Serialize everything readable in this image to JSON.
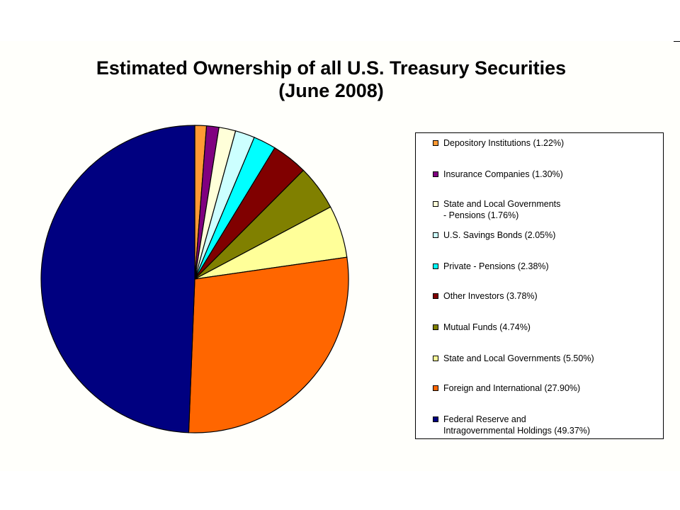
{
  "chart_data": {
    "type": "pie",
    "title": "Estimated Ownership of all U.S. Treasury Securities",
    "subtitle": "(June 2008)",
    "legend_position": "right",
    "slices": [
      {
        "label": "Depository Institutions (1.22%)",
        "value": 1.22,
        "color": "#ff9933"
      },
      {
        "label": "Insurance Companies (1.30%)",
        "value": 1.3,
        "color": "#800080"
      },
      {
        "label": "State and Local Governments\n- Pensions (1.76%)",
        "value": 1.76,
        "color": "#ffffd9"
      },
      {
        "label": "U.S. Savings Bonds (2.05%)",
        "value": 2.05,
        "color": "#ccffff"
      },
      {
        "label": "Private - Pensions (2.38%)",
        "value": 2.38,
        "color": "#00ffff"
      },
      {
        "label": "Other Investors (3.78%)",
        "value": 3.78,
        "color": "#800000"
      },
      {
        "label": "Mutual Funds (4.74%)",
        "value": 4.74,
        "color": "#808000"
      },
      {
        "label": "State and Local Governments (5.50%)",
        "value": 5.5,
        "color": "#ffff99"
      },
      {
        "label": "Foreign and International (27.90%)",
        "value": 27.9,
        "color": "#ff6600"
      },
      {
        "label": "Federal Reserve and\nIntragovernmental Holdings (49.37%)",
        "value": 49.37,
        "color": "#000080"
      }
    ]
  }
}
